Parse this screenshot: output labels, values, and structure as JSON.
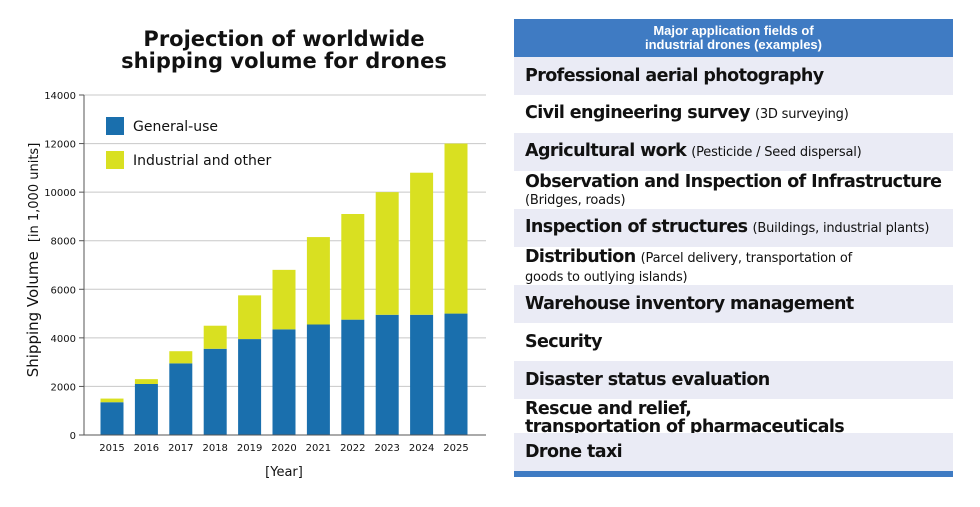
{
  "chart_data": {
    "type": "bar",
    "stacked": true,
    "title_lines": [
      "Projection of worldwide",
      "shipping volume for drones"
    ],
    "ylabel": "Shipping Volume",
    "ylabel_unit": "[in 1,000 units]",
    "xlabel": "[Year]",
    "ylim": [
      0,
      14000
    ],
    "yticks": [
      0,
      2000,
      4000,
      6000,
      8000,
      10000,
      12000,
      14000
    ],
    "categories": [
      "2015",
      "2016",
      "2017",
      "2018",
      "2019",
      "2020",
      "2021",
      "2022",
      "2023",
      "2024",
      "2025"
    ],
    "series": [
      {
        "name": "General-use",
        "color": "#1a6fad",
        "values": [
          1350,
          2100,
          2950,
          3550,
          3950,
          4350,
          4550,
          4750,
          4950,
          4950,
          5000
        ]
      },
      {
        "name": "Industrial and other",
        "color": "#d9e021",
        "values": [
          150,
          200,
          500,
          950,
          1800,
          2450,
          3600,
          4350,
          5050,
          5850,
          7000
        ]
      }
    ],
    "grid": true,
    "legend_position": "top-left"
  },
  "table": {
    "header": [
      "Major application fields of",
      "industrial drones (examples)"
    ],
    "header_color": "#3f7bc3",
    "stripe_color": "#eaebf5",
    "rows": [
      {
        "main": "Professional aerial photography",
        "note": ""
      },
      {
        "main": "Civil engineering survey",
        "note": "(3D surveying)"
      },
      {
        "main": "Agricultural work",
        "note": "(Pesticide / Seed dispersal)"
      },
      {
        "main": "Observation and Inspection of Infrastructure",
        "note": "(Bridges, roads)"
      },
      {
        "main": "Inspection of structures",
        "note": "(Buildings, industrial plants)"
      },
      {
        "main": "Distribution",
        "note": "(Parcel delivery, transportation of",
        "note2": "goods to outlying islands)"
      },
      {
        "main": "Warehouse inventory management",
        "note": ""
      },
      {
        "main": "Security",
        "note": ""
      },
      {
        "main": "Disaster status evaluation",
        "note": ""
      },
      {
        "main": "Rescue and relief,",
        "main2": "transportation of pharmaceuticals",
        "note": ""
      },
      {
        "main": "Drone taxi",
        "note": ""
      }
    ]
  }
}
